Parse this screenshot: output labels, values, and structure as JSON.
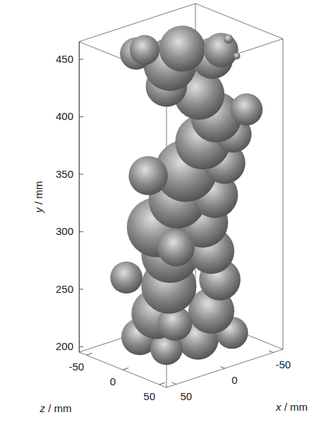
{
  "chart_data": {
    "type": "isosurface",
    "xlabel": "x / mm",
    "ylabel": "y / mm",
    "zlabel": "z / mm",
    "xlim": [
      -60,
      60
    ],
    "ylim": [
      195,
      465
    ],
    "zlim": [
      -60,
      60
    ],
    "xticks": [
      -50,
      0,
      50
    ],
    "yticks": [
      200,
      250,
      300,
      350,
      400,
      450
    ],
    "zticks": [
      -50,
      0,
      50
    ],
    "color": "#8c8c8c",
    "x": [
      20,
      -10,
      -30,
      30,
      10,
      -20,
      25,
      5,
      -25,
      30,
      0,
      -20,
      10,
      -15,
      20,
      0,
      -20,
      -5,
      -30,
      15,
      -15,
      -35,
      -25,
      -45,
      -15,
      0,
      0,
      -25,
      20,
      -5,
      -30,
      15,
      -45,
      -50
    ],
    "y": [
      205,
      205,
      210,
      210,
      225,
      228,
      232,
      250,
      255,
      258,
      275,
      280,
      300,
      305,
      295,
      325,
      330,
      350,
      355,
      345,
      375,
      380,
      395,
      400,
      415,
      420,
      440,
      445,
      450,
      455,
      452,
      453,
      455,
      440
    ],
    "z": [
      -30,
      10,
      30,
      20,
      -20,
      15,
      25,
      -10,
      20,
      -35,
      -15,
      15,
      -20,
      10,
      20,
      -5,
      20,
      0,
      20,
      -25,
      10,
      25,
      15,
      30,
      5,
      -20,
      -15,
      10,
      -35,
      -5,
      15,
      -30,
      5,
      10
    ],
    "size": [
      16,
      18,
      14,
      14,
      22,
      20,
      15,
      24,
      18,
      14,
      25,
      20,
      26,
      22,
      16,
      25,
      20,
      27,
      18,
      17,
      24,
      16,
      22,
      14,
      22,
      18,
      23,
      18,
      14,
      20,
      15,
      13,
      4,
      3
    ]
  }
}
